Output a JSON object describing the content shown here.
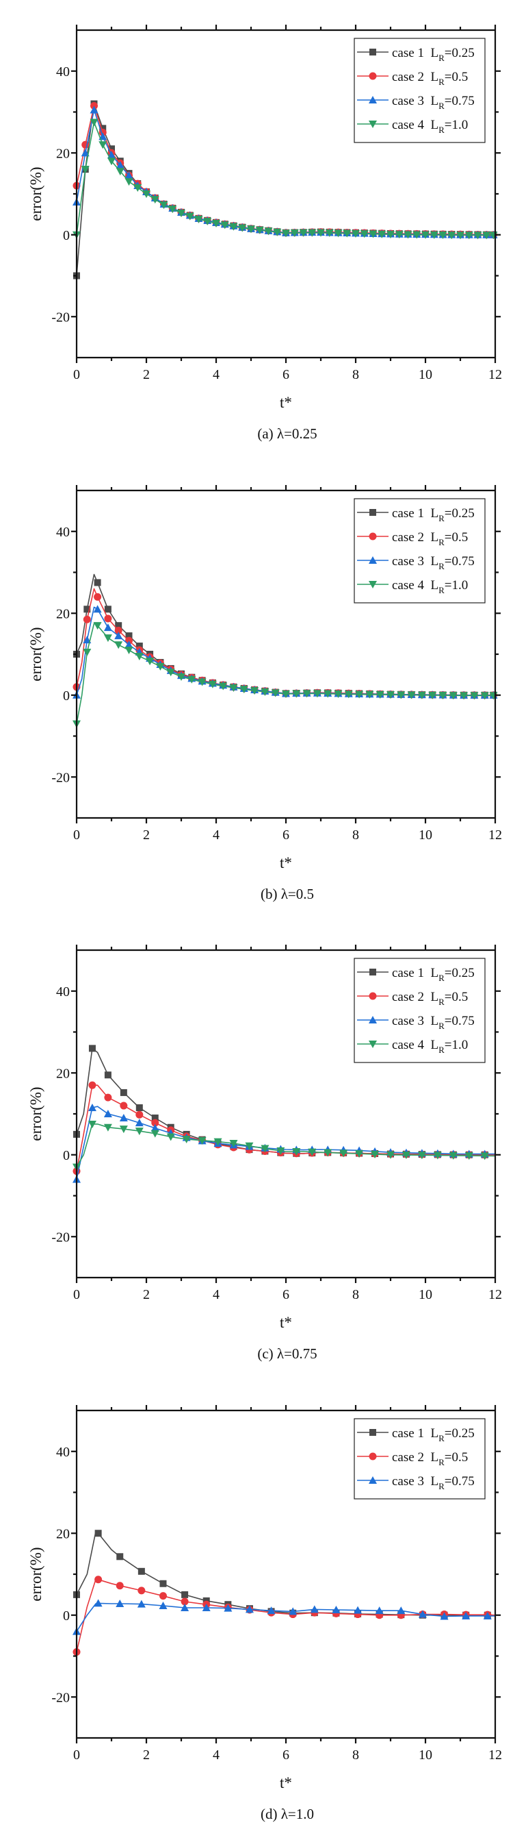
{
  "chart_data": [
    {
      "type": "line",
      "caption": "(a) λ=0.25",
      "xlabel": "t*",
      "ylabel": "error(%)",
      "xlim": [
        0,
        12
      ],
      "ylim": [
        -30,
        50
      ],
      "xticks": [
        "0",
        "2",
        "4",
        "6",
        "8",
        "10",
        "12"
      ],
      "yticks": [
        "-20",
        "0",
        "20",
        "40"
      ],
      "marker_step": 0.25,
      "legend_position": "top-right",
      "x": [
        0,
        0.25,
        0.5,
        0.75,
        1,
        1.25,
        1.5,
        1.75,
        2,
        2.5,
        3,
        3.5,
        4,
        4.5,
        5,
        5.5,
        6,
        6.5,
        7,
        8,
        9,
        10,
        11,
        12
      ],
      "series": [
        {
          "case": "case 1",
          "lr_sym": "L",
          "lr_sub": "R",
          "lr_val": "=0.25",
          "color": "#4a4a4a",
          "marker": "square",
          "values": [
            -10,
            16,
            32,
            26,
            21,
            18,
            15,
            12.5,
            10.5,
            7.5,
            5.5,
            4,
            3,
            2.2,
            1.5,
            1,
            0.5,
            0.6,
            0.7,
            0.5,
            0.3,
            0.2,
            0.1,
            0
          ]
        },
        {
          "case": "case 2",
          "lr_sym": "L",
          "lr_sub": "R",
          "lr_val": "=0.5",
          "color": "#e8383d",
          "marker": "circle",
          "values": [
            12,
            22,
            31.5,
            25,
            20,
            17.5,
            14.5,
            12.5,
            10.5,
            7.5,
            5.5,
            4,
            3,
            2.2,
            1.5,
            1,
            0.5,
            0.6,
            0.7,
            0.5,
            0.3,
            0.2,
            0.1,
            0
          ]
        },
        {
          "case": "case 3",
          "lr_sym": "L",
          "lr_sub": "R",
          "lr_val": "=0.75",
          "color": "#1f6fd6",
          "marker": "triangle-up",
          "values": [
            8,
            20,
            30.5,
            24,
            19.5,
            17,
            14.5,
            12,
            10.5,
            7.5,
            5.5,
            4,
            3,
            2.2,
            1.5,
            1,
            0.5,
            0.6,
            0.6,
            0.4,
            0.2,
            0.1,
            0,
            0
          ]
        },
        {
          "case": "case 4",
          "lr_sym": "L",
          "lr_sub": "R",
          "lr_val": "=1.0",
          "color": "#2e9e63",
          "marker": "triangle-down",
          "values": [
            0,
            16,
            27.5,
            22,
            18,
            15.5,
            13,
            11.5,
            10,
            7.3,
            5.3,
            3.8,
            2.8,
            2,
            1.4,
            0.9,
            0.4,
            0.5,
            0.5,
            0.3,
            0.1,
            0,
            -0.1,
            -0.1
          ]
        }
      ]
    },
    {
      "type": "line",
      "caption": "(b) λ=0.5",
      "xlabel": "t*",
      "ylabel": "error(%)",
      "xlim": [
        0,
        12
      ],
      "ylim": [
        -30,
        50
      ],
      "xticks": [
        "0",
        "2",
        "4",
        "6",
        "8",
        "10",
        "12"
      ],
      "yticks": [
        "-20",
        "0",
        "20",
        "40"
      ],
      "marker_step": 0.3,
      "legend_position": "top-right",
      "x": [
        0,
        0.15,
        0.3,
        0.5,
        0.6,
        0.9,
        1.2,
        1.5,
        1.8,
        2.1,
        2.4,
        2.7,
        3,
        3.5,
        4,
        4.5,
        5,
        5.5,
        6,
        6.5,
        7,
        8,
        9,
        10,
        11,
        12
      ],
      "series": [
        {
          "case": "case 1",
          "lr_sym": "L",
          "lr_sub": "R",
          "lr_val": "=0.25",
          "color": "#4a4a4a",
          "marker": "square",
          "values": [
            10,
            13,
            21,
            29.5,
            27.5,
            21,
            17,
            14.5,
            12,
            10,
            8,
            6.5,
            5.2,
            3.8,
            2.8,
            2,
            1.4,
            0.9,
            0.4,
            0.5,
            0.6,
            0.4,
            0.2,
            0.1,
            0,
            0
          ]
        },
        {
          "case": "case 2",
          "lr_sym": "L",
          "lr_sub": "R",
          "lr_val": "=0.5",
          "color": "#e8383d",
          "marker": "circle",
          "values": [
            2,
            8,
            18.5,
            26,
            24,
            18.7,
            15.8,
            13.3,
            11,
            9.3,
            7.8,
            6.3,
            5,
            3.8,
            2.8,
            2,
            1.4,
            0.9,
            0.4,
            0.5,
            0.6,
            0.4,
            0.2,
            0.1,
            0,
            0
          ]
        },
        {
          "case": "case 3",
          "lr_sym": "L",
          "lr_sub": "R",
          "lr_val": "=0.75",
          "color": "#1f6fd6",
          "marker": "triangle-up",
          "values": [
            0,
            4,
            13.5,
            21.5,
            21,
            16.5,
            14.5,
            12.3,
            10.5,
            9,
            7.5,
            6,
            4.8,
            3.6,
            2.7,
            2,
            1.4,
            0.9,
            0.4,
            0.5,
            0.5,
            0.3,
            0.2,
            0.1,
            0,
            0
          ]
        },
        {
          "case": "case 4",
          "lr_sym": "L",
          "lr_sub": "R",
          "lr_val": "=1.0",
          "color": "#2e9e63",
          "marker": "triangle-down",
          "values": [
            -7,
            0,
            10.5,
            17.5,
            17,
            14,
            12.3,
            11,
            9.5,
            8.3,
            7,
            5.6,
            4.5,
            3.4,
            2.5,
            1.8,
            1.2,
            0.7,
            0.3,
            0.4,
            0.4,
            0.2,
            0.1,
            0,
            -0.1,
            -0.1
          ]
        }
      ]
    },
    {
      "type": "line",
      "caption": "(c) λ=0.75",
      "xlabel": "t*",
      "ylabel": "error(%)",
      "xlim": [
        0,
        12
      ],
      "ylim": [
        -30,
        50
      ],
      "xticks": [
        "0",
        "2",
        "4",
        "6",
        "8",
        "10",
        "12"
      ],
      "yticks": [
        "-20",
        "0",
        "20",
        "40"
      ],
      "marker_step": 0.45,
      "legend_position": "top-right",
      "x": [
        0,
        0.2,
        0.45,
        0.6,
        0.9,
        1.35,
        1.8,
        2.25,
        2.7,
        3.15,
        3.6,
        4.05,
        4.5,
        5,
        5.5,
        6,
        6.5,
        7,
        8,
        9,
        10,
        11,
        12
      ],
      "series": [
        {
          "case": "case 1",
          "lr_sym": "L",
          "lr_sub": "R",
          "lr_val": "=0.25",
          "color": "#4a4a4a",
          "marker": "square",
          "values": [
            5,
            10,
            26,
            25,
            19.5,
            15.2,
            11.5,
            9,
            6.7,
            5,
            3.7,
            2.7,
            2,
            1.2,
            0.8,
            0.4,
            0.3,
            0.6,
            0.4,
            0.2,
            0.1,
            0,
            0
          ]
        },
        {
          "case": "case 2",
          "lr_sym": "L",
          "lr_sub": "R",
          "lr_val": "=0.5",
          "color": "#e8383d",
          "marker": "circle",
          "values": [
            -4,
            5,
            17,
            17,
            14,
            12,
            9.8,
            7.8,
            6,
            4.5,
            3.5,
            2.5,
            1.8,
            1.2,
            0.8,
            0.4,
            0.3,
            0.6,
            0.4,
            0.2,
            0.1,
            0,
            0
          ]
        },
        {
          "case": "case 3",
          "lr_sym": "L",
          "lr_sub": "R",
          "lr_val": "=0.75",
          "color": "#1f6fd6",
          "marker": "triangle-up",
          "values": [
            -6,
            2,
            11.5,
            11.8,
            10,
            9,
            7.8,
            6.5,
            5.3,
            4.2,
            3.4,
            2.8,
            2.4,
            2,
            1.6,
            1.3,
            1.2,
            1.3,
            1.1,
            0.6,
            0.4,
            0.2,
            0.2
          ]
        },
        {
          "case": "case 4",
          "lr_sym": "L",
          "lr_sub": "R",
          "lr_val": "=1.0",
          "color": "#2e9e63",
          "marker": "triangle-down",
          "values": [
            -3,
            0,
            7.5,
            7.5,
            6.7,
            6.3,
            5.8,
            5.2,
            4.4,
            3.8,
            3.5,
            3.2,
            2.8,
            2.1,
            1.4,
            0.8,
            0.8,
            0.6,
            0.3,
            0,
            -0.1,
            -0.2,
            -0.3
          ]
        }
      ]
    },
    {
      "type": "line",
      "caption": "(d) λ=1.0",
      "xlabel": "t*",
      "ylabel": "error(%)",
      "xlim": [
        0,
        12
      ],
      "ylim": [
        -30,
        50
      ],
      "xticks": [
        "0",
        "2",
        "4",
        "6",
        "8",
        "10",
        "12"
      ],
      "yticks": [
        "-20",
        "0",
        "20",
        "40"
      ],
      "marker_step": 0.62,
      "legend_position": "top-right",
      "x": [
        0,
        0.3,
        0.55,
        0.62,
        1,
        1.24,
        1.86,
        2.48,
        3.1,
        3.72,
        4.34,
        4.96,
        5.58,
        6.2,
        6.82,
        7.44,
        8.06,
        8.68,
        9.3,
        9.92,
        10.54,
        11.16,
        11.78,
        12
      ],
      "series": [
        {
          "case": "case 1",
          "lr_sym": "L",
          "lr_sub": "R",
          "lr_val": "=0.25",
          "color": "#4a4a4a",
          "marker": "square",
          "values": [
            5,
            10,
            20.5,
            20,
            16,
            14.3,
            10.7,
            7.7,
            5,
            3.5,
            2.6,
            1.6,
            0.9,
            0.5,
            0.6,
            0.5,
            0.3,
            0.2,
            0.1,
            0,
            0,
            0,
            0,
            0
          ]
        },
        {
          "case": "case 2",
          "lr_sym": "L",
          "lr_sub": "R",
          "lr_val": "=0.5",
          "color": "#e8383d",
          "marker": "circle",
          "values": [
            -9,
            2,
            8.8,
            8.7,
            7.7,
            7.2,
            6,
            4.7,
            3.3,
            2.6,
            1.9,
            1.3,
            0.6,
            0.2,
            0.6,
            0.4,
            0.2,
            0,
            0,
            0.2,
            0.2,
            0.1,
            0.1,
            0
          ]
        },
        {
          "case": "case 3",
          "lr_sym": "L",
          "lr_sub": "R",
          "lr_val": "=0.75",
          "color": "#1f6fd6",
          "marker": "triangle-up",
          "values": [
            -4,
            0,
            2.8,
            2.9,
            2.8,
            2.8,
            2.7,
            2.3,
            1.8,
            1.8,
            1.7,
            1.4,
            1.1,
            0.9,
            1.4,
            1.3,
            1.2,
            1.1,
            1.1,
            0.2,
            -0.3,
            -0.2,
            -0.2,
            -0.2
          ]
        }
      ]
    }
  ]
}
